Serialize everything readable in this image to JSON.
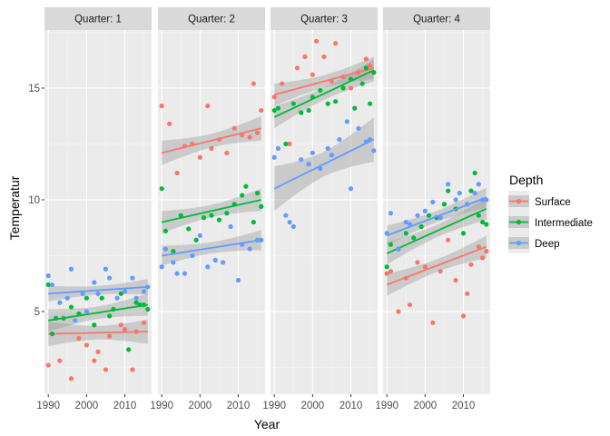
{
  "chart_data": {
    "type": "scatter",
    "title": "",
    "xlabel": "Year",
    "ylabel": "Temperatur",
    "xlim": [
      1989,
      2017
    ],
    "ylim": [
      1.3,
      17.6
    ],
    "x_ticks": [
      1990,
      2000,
      2010
    ],
    "y_ticks": [
      5,
      10,
      15
    ],
    "grid": true,
    "facet_label_prefix": "Quarter: ",
    "panels": [
      "1",
      "2",
      "3",
      "4"
    ],
    "legend": {
      "title": "Depth",
      "position": "right",
      "entries": [
        "Surface",
        "Intermediate",
        "Deep"
      ]
    },
    "colors": {
      "Surface": "#f8766d",
      "Intermediate": "#00ba38",
      "Deep": "#619cff",
      "panel_bg": "#ebebeb",
      "strip_bg": "#d9d9d9",
      "ribbon": "#999999"
    },
    "series": [
      {
        "name": "Surface",
        "panel": "1",
        "x": [
          1990,
          1991,
          1993,
          1996,
          1998,
          2000,
          2002,
          2003,
          2005,
          2006,
          2009,
          2010,
          2012,
          2013,
          2015
        ],
        "y": [
          2.6,
          4.0,
          2.8,
          2.0,
          3.8,
          3.5,
          2.8,
          3.2,
          2.4,
          3.9,
          4.4,
          4.2,
          2.4,
          4.1,
          4.5
        ],
        "trend": [
          4.0,
          4.1
        ],
        "band": 0.55
      },
      {
        "name": "Intermediate",
        "panel": "1",
        "x": [
          1990,
          1991,
          1992,
          1994,
          1996,
          1998,
          2000,
          2002,
          2004,
          2006,
          2007,
          2009,
          2011,
          2013,
          2014,
          2015,
          2016
        ],
        "y": [
          6.2,
          4.0,
          4.7,
          4.7,
          5.2,
          4.9,
          5.6,
          4.4,
          5.6,
          4.8,
          5.1,
          5.8,
          3.3,
          5.4,
          5.3,
          5.3,
          5.1
        ],
        "trend": [
          4.6,
          5.3
        ],
        "band": 0.5
      },
      {
        "name": "Deep",
        "panel": "1",
        "x": [
          1990,
          1991,
          1993,
          1995,
          1996,
          1997,
          1999,
          2000,
          2002,
          2003,
          2005,
          2006,
          2008,
          2010,
          2012,
          2013,
          2015,
          2016
        ],
        "y": [
          6.6,
          6.2,
          5.4,
          5.6,
          6.9,
          4.6,
          5.8,
          5.0,
          6.3,
          5.8,
          6.9,
          6.5,
          5.6,
          5.9,
          6.5,
          5.6,
          5.9,
          6.1
        ],
        "trend": [
          5.8,
          6.1
        ],
        "band": 0.35
      },
      {
        "name": "Surface",
        "panel": "2",
        "x": [
          1990,
          1992,
          1994,
          1996,
          1998,
          2000,
          2002,
          2003,
          2005,
          2007,
          2009,
          2011,
          2013,
          2014,
          2015,
          2016
        ],
        "y": [
          14.2,
          13.4,
          11.2,
          12.4,
          12.5,
          11.9,
          14.2,
          12.3,
          12.7,
          12.1,
          13.2,
          12.9,
          12.8,
          15.2,
          13.0,
          14.0
        ],
        "trend": [
          12.1,
          13.2
        ],
        "band": 0.55
      },
      {
        "name": "Intermediate",
        "panel": "2",
        "x": [
          1990,
          1991,
          1993,
          1995,
          1997,
          1999,
          2001,
          2003,
          2005,
          2007,
          2009,
          2011,
          2012,
          2014,
          2015,
          2016
        ],
        "y": [
          10.5,
          8.6,
          7.7,
          9.3,
          8.7,
          8.2,
          9.2,
          9.3,
          9.1,
          9.4,
          9.8,
          10.2,
          10.6,
          9.0,
          10.3,
          9.7
        ],
        "trend": [
          9.0,
          10.0
        ],
        "band": 0.5
      },
      {
        "name": "Deep",
        "panel": "2",
        "x": [
          1990,
          1991,
          1993,
          1994,
          1996,
          1998,
          2000,
          2002,
          2004,
          2006,
          2008,
          2010,
          2011,
          2013,
          2015,
          2016
        ],
        "y": [
          7.0,
          7.8,
          7.2,
          6.7,
          6.7,
          7.5,
          8.4,
          7.0,
          7.3,
          7.2,
          8.8,
          6.4,
          8.0,
          7.8,
          8.2,
          8.2
        ],
        "trend": [
          7.5,
          8.2
        ],
        "band": 0.45
      },
      {
        "name": "Surface",
        "panel": "3",
        "x": [
          1990,
          1992,
          1994,
          1996,
          1998,
          2000,
          2001,
          2003,
          2005,
          2006,
          2008,
          2010,
          2012,
          2014,
          2015,
          2016
        ],
        "y": [
          14.6,
          15.2,
          12.5,
          15.9,
          16.4,
          15.6,
          17.1,
          16.4,
          15.3,
          17.0,
          15.5,
          15.0,
          15.7,
          16.3,
          16.0,
          15.7
        ],
        "trend": [
          14.7,
          15.9
        ],
        "band": 0.5
      },
      {
        "name": "Intermediate",
        "panel": "3",
        "x": [
          1990,
          1991,
          1993,
          1995,
          1997,
          1999,
          2000,
          2002,
          2004,
          2006,
          2008,
          2010,
          2011,
          2013,
          2014,
          2015,
          2016
        ],
        "y": [
          14.0,
          14.1,
          12.5,
          14.3,
          13.9,
          14.0,
          14.6,
          14.9,
          14.3,
          14.4,
          15.0,
          15.4,
          14.1,
          15.2,
          15.9,
          14.3,
          15.7
        ],
        "trend": [
          13.7,
          15.8
        ],
        "band": 0.5
      },
      {
        "name": "Deep",
        "panel": "3",
        "x": [
          1990,
          1991,
          1993,
          1994,
          1995,
          1997,
          1999,
          2000,
          2002,
          2004,
          2005,
          2007,
          2009,
          2010,
          2012,
          2014,
          2015,
          2016
        ],
        "y": [
          11.9,
          12.3,
          9.3,
          9.0,
          8.8,
          11.8,
          11.6,
          12.1,
          11.4,
          12.3,
          12.0,
          12.7,
          13.5,
          10.5,
          13.2,
          12.6,
          12.7,
          12.2
        ],
        "trend": [
          10.5,
          12.7
        ],
        "band": 1.0
      },
      {
        "name": "Surface",
        "panel": "4",
        "x": [
          1990,
          1991,
          1993,
          1995,
          1996,
          1998,
          2000,
          2002,
          2004,
          2006,
          2008,
          2010,
          2011,
          2012,
          2014,
          2015,
          2016
        ],
        "y": [
          6.7,
          6.8,
          5.0,
          6.5,
          5.3,
          7.2,
          7.0,
          4.5,
          6.8,
          8.2,
          6.4,
          4.8,
          5.8,
          7.1,
          7.9,
          7.4,
          7.7
        ],
        "trend": [
          6.2,
          7.9
        ],
        "band": 0.5
      },
      {
        "name": "Intermediate",
        "panel": "4",
        "x": [
          1990,
          1991,
          1993,
          1995,
          1997,
          1999,
          2001,
          2003,
          2005,
          2006,
          2008,
          2010,
          2012,
          2013,
          2014,
          2015,
          2016
        ],
        "y": [
          7.0,
          8.0,
          7.8,
          8.5,
          8.3,
          8.8,
          9.3,
          9.2,
          9.8,
          10.4,
          9.6,
          8.5,
          10.4,
          11.2,
          9.3,
          9.0,
          8.9
        ],
        "trend": [
          7.6,
          9.6
        ],
        "band": 0.5
      },
      {
        "name": "Deep",
        "panel": "4",
        "x": [
          1990,
          1991,
          1993,
          1995,
          1996,
          1998,
          2000,
          2002,
          2004,
          2006,
          2008,
          2009,
          2011,
          2013,
          2014,
          2015,
          2016
        ],
        "y": [
          8.5,
          9.4,
          7.8,
          9.0,
          8.9,
          9.3,
          9.5,
          9.9,
          9.2,
          10.7,
          10.0,
          10.3,
          9.8,
          10.3,
          10.7,
          10.0,
          10.0
        ],
        "trend": [
          8.4,
          10.1
        ],
        "band": 0.45
      }
    ]
  }
}
